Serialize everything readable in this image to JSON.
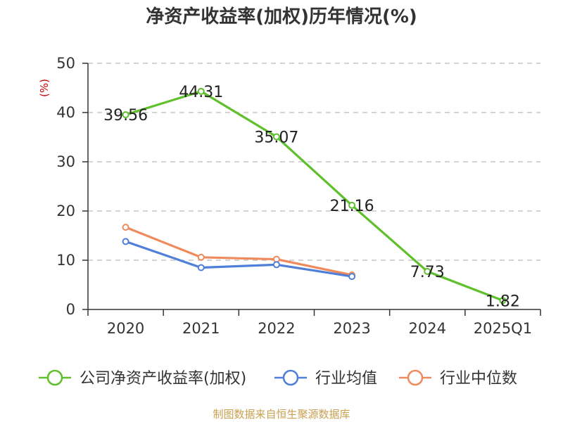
{
  "chart_data": {
    "type": "line",
    "title": "净资产收益率(加权)历年情况(%)",
    "ylabel": "(%)",
    "xlabel": "",
    "categories": [
      "2020",
      "2021",
      "2022",
      "2023",
      "2024",
      "2025Q1"
    ],
    "ylim": [
      0,
      50
    ],
    "yticks": [
      0,
      10,
      20,
      30,
      40,
      50
    ],
    "grid": true,
    "legend_position": "bottom",
    "series": [
      {
        "name": "公司净资产收益率(加权)",
        "color": "#5fc02c",
        "values": [
          39.56,
          44.31,
          35.07,
          21.16,
          7.73,
          1.82
        ],
        "labeled": true
      },
      {
        "name": "行业均值",
        "color": "#4f7fd8",
        "values": [
          13.8,
          8.5,
          9.1,
          6.7,
          null,
          null
        ],
        "labeled": false
      },
      {
        "name": "行业中位数",
        "color": "#f08a5c",
        "values": [
          16.7,
          10.6,
          10.2,
          7.0,
          null,
          null
        ],
        "labeled": false
      }
    ]
  },
  "source_text": "制图数据来自恒生聚源数据库",
  "colors": {
    "axis": "#333333",
    "grid": "#bbbbbb",
    "unit_label": "#cc0000",
    "source": "#c8a050"
  }
}
